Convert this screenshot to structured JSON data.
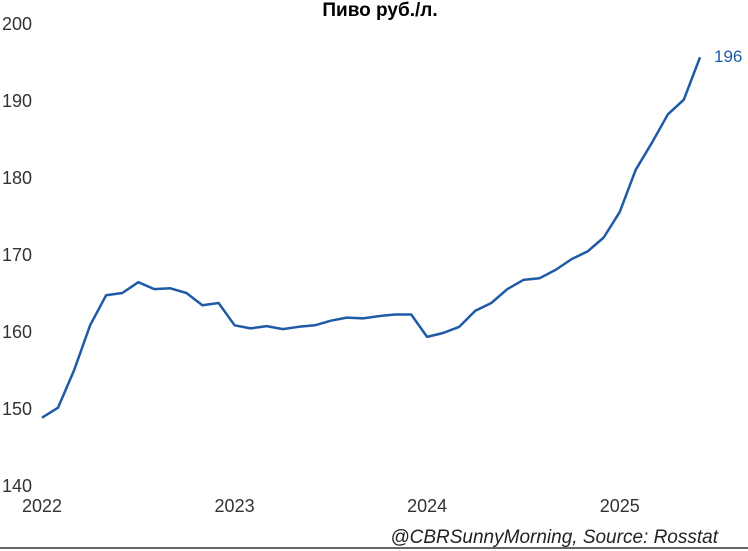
{
  "chart_data": {
    "type": "line",
    "title": "Пиво руб./л.",
    "footer": "@CBRSunnyMorning, Source: Rosstat",
    "x": [
      2022,
      2022.083,
      2022.167,
      2022.25,
      2022.333,
      2022.417,
      2022.5,
      2022.583,
      2022.667,
      2022.75,
      2022.833,
      2022.917,
      2023,
      2023.083,
      2023.167,
      2023.25,
      2023.333,
      2023.417,
      2023.5,
      2023.583,
      2023.667,
      2023.75,
      2023.833,
      2023.917,
      2024,
      2024.083,
      2024.167,
      2024.25,
      2024.333,
      2024.417,
      2024.5,
      2024.583,
      2024.667,
      2024.75,
      2024.833,
      2024.917,
      2025,
      2025.083,
      2025.167,
      2025.25,
      2025.333,
      2025.417
    ],
    "series": [
      {
        "color": "#1f5aa6",
        "values": [
          149.0,
          150.3,
          155.2,
          161.0,
          164.9,
          165.2,
          166.6,
          165.7,
          165.8,
          165.2,
          163.6,
          163.9,
          161.0,
          160.6,
          160.9,
          160.5,
          160.8,
          161.0,
          161.6,
          162.0,
          161.9,
          162.2,
          162.4,
          162.4,
          159.5,
          160.0,
          160.8,
          162.9,
          163.9,
          165.7,
          166.9,
          167.1,
          168.2,
          169.6,
          170.6,
          172.4,
          175.7,
          181.2,
          184.7,
          188.4,
          190.3,
          195.8
        ],
        "value_labels": [
          null,
          null,
          null,
          null,
          null,
          null,
          null,
          null,
          null,
          null,
          null,
          null,
          null,
          null,
          null,
          null,
          null,
          null,
          null,
          null,
          null,
          null,
          null,
          null,
          null,
          null,
          null,
          null,
          null,
          null,
          null,
          null,
          null,
          null,
          null,
          null,
          null,
          null,
          null,
          null,
          null,
          "196"
        ]
      }
    ],
    "xlim": [
      2022,
      2025.5
    ],
    "xticks": [
      2022,
      2023,
      2024,
      2025
    ],
    "ylim": [
      140,
      200
    ],
    "yticks": [
      140,
      150,
      160,
      170,
      180,
      190,
      200
    ],
    "grid": false
  }
}
